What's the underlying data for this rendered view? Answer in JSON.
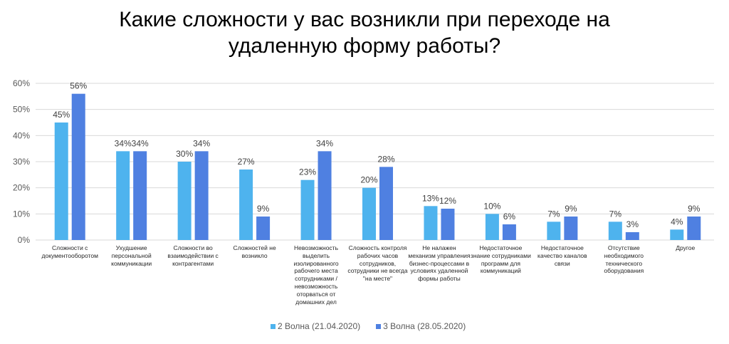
{
  "chart_data": {
    "type": "bar",
    "title": "Какие сложности у вас возникли при переходе на удаленную форму работы?",
    "categories": [
      "Сложности с документооборотом",
      "Ухудшение персональной коммуникации",
      "Сложности во взаимодействии с контрагентами",
      "Сложностей не возникло",
      "Невозможность выделить изолированного рабочего места сотрудниками / невозможность оторваться от домашних дел",
      "Сложность контроля рабочих часов сотрудников, сотрудники не всегда \"на месте\"",
      "Не налажен механизм управления бизнес-процессами в условиях удаленной формы работы",
      "Недостаточное знание сотрудниками программ для коммуникаций",
      "Недостаточное качество каналов связи",
      "Отсутствие необходимого технического оборудования",
      "Другое"
    ],
    "series": [
      {
        "name": "2 Волна (21.04.2020)",
        "color": "#4EB3EE",
        "values": [
          45,
          34,
          30,
          27,
          23,
          20,
          13,
          10,
          7,
          7,
          4
        ],
        "labels": [
          "45%",
          "34%",
          "30%",
          "27%",
          "23%",
          "20%",
          "13%",
          "10%",
          "7%",
          "7%",
          "4%"
        ]
      },
      {
        "name": "3 Волна (28.05.2020)",
        "color": "#4F80E1",
        "values": [
          56,
          34,
          34,
          9,
          34,
          28,
          12,
          6,
          9,
          3,
          9
        ],
        "labels": [
          "56%",
          "34%",
          "34%",
          "9%",
          "34%",
          "28%",
          "12%",
          "6%",
          "9%",
          "3%",
          "9%"
        ]
      }
    ],
    "ylim": [
      0,
      60
    ],
    "y_ticks": [
      0,
      10,
      20,
      30,
      40,
      50,
      60
    ],
    "y_tick_labels": [
      "0%",
      "10%",
      "20%",
      "30%",
      "40%",
      "50%",
      "60%"
    ],
    "grid": true,
    "legend": "bottom",
    "colors": {
      "gridline": "#D9D9D9",
      "tick_label": "#595959",
      "data_label": "#404040"
    }
  }
}
